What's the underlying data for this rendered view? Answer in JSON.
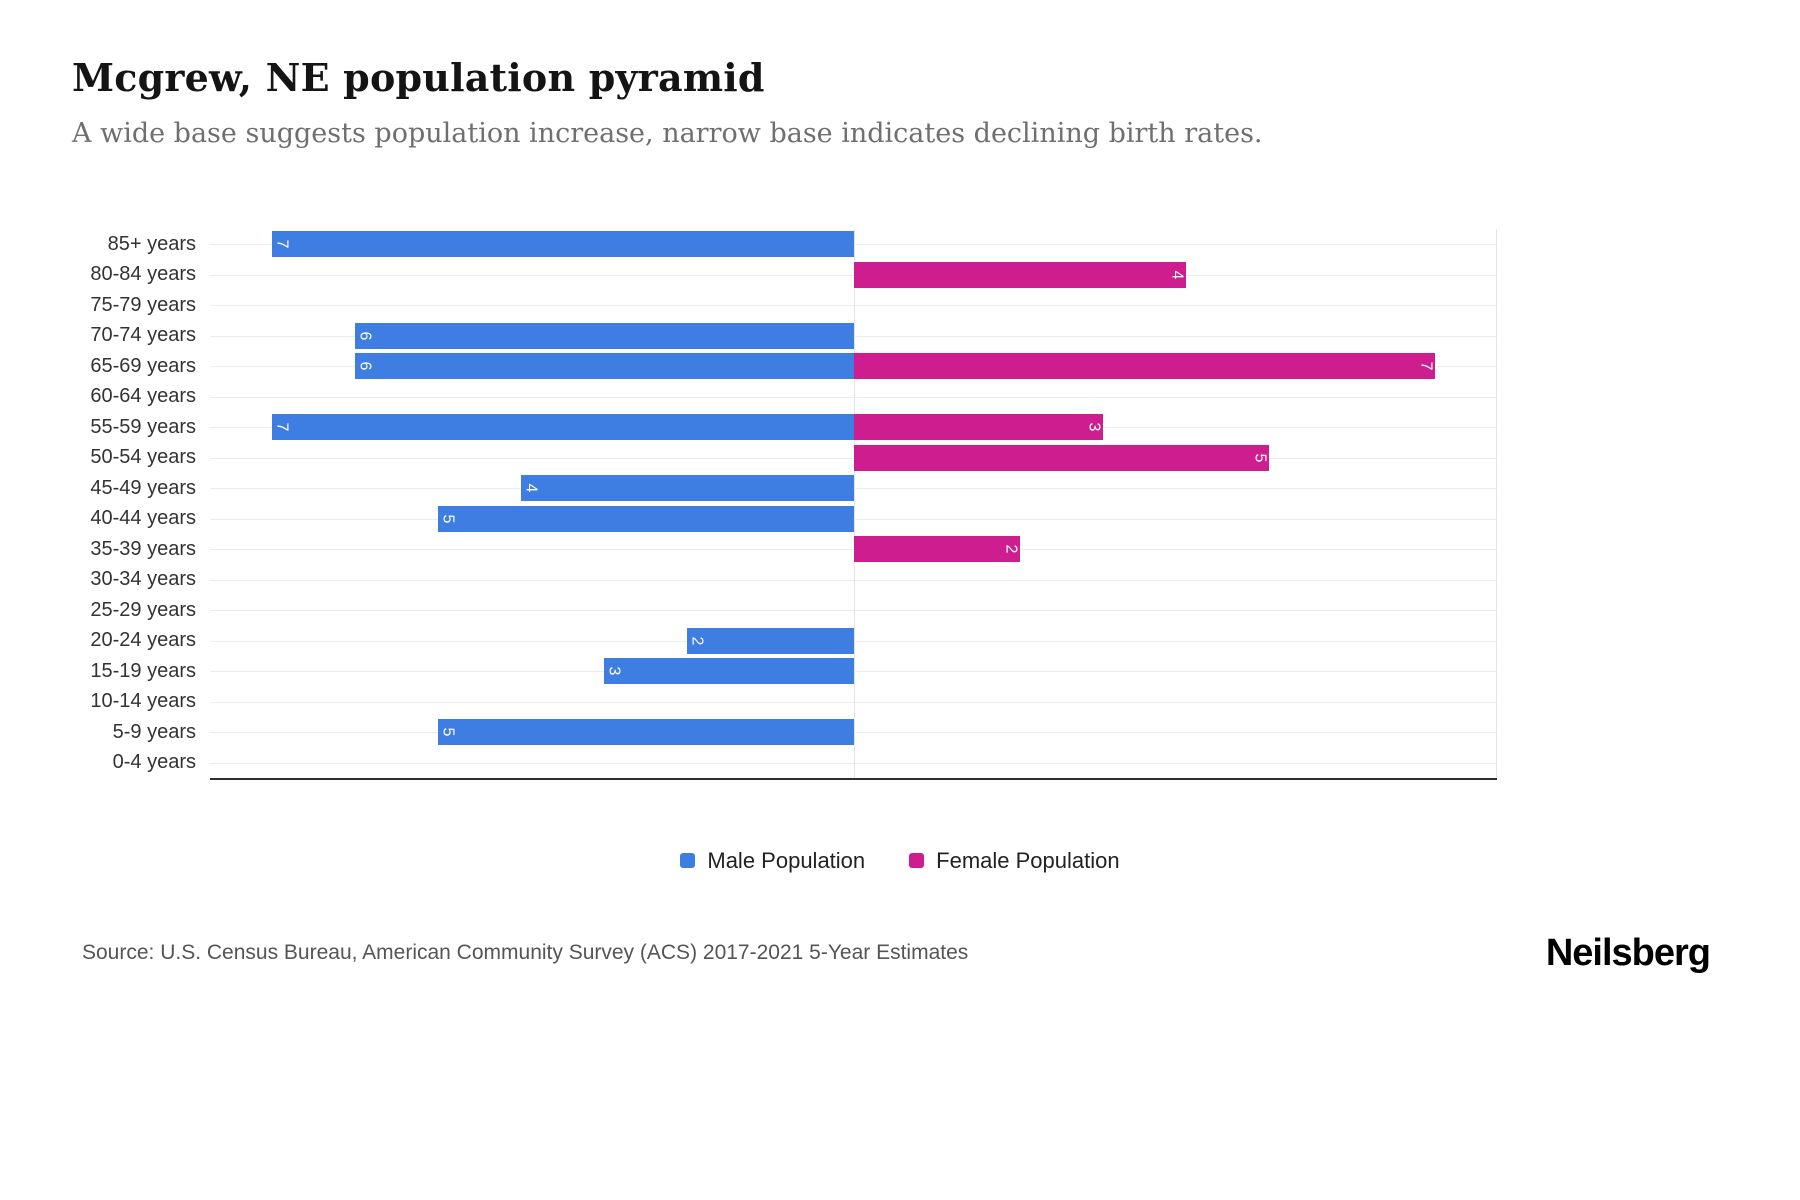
{
  "header": {
    "title": "Mcgrew, NE population pyramid",
    "subtitle": "A wide base suggests population increase, narrow base indicates declining birth rates."
  },
  "chart_data": {
    "type": "bar",
    "variant": "population-pyramid",
    "orientation": "horizontal",
    "categories": [
      "85+ years",
      "80-84 years",
      "75-79 years",
      "70-74 years",
      "65-69 years",
      "60-64 years",
      "55-59 years",
      "50-54 years",
      "45-49 years",
      "40-44 years",
      "35-39 years",
      "30-34 years",
      "25-29 years",
      "20-24 years",
      "15-19 years",
      "10-14 years",
      "5-9 years",
      "0-4 years"
    ],
    "series": [
      {
        "name": "Male Population",
        "color": "#3e7de1",
        "side": "left",
        "values": [
          7,
          0,
          0,
          6,
          6,
          0,
          7,
          0,
          4,
          5,
          0,
          0,
          0,
          2,
          3,
          0,
          5,
          0
        ]
      },
      {
        "name": "Female Population",
        "color": "#ce1d8e",
        "side": "right",
        "values": [
          0,
          4,
          0,
          0,
          7,
          0,
          3,
          5,
          0,
          0,
          2,
          0,
          0,
          0,
          0,
          0,
          0,
          0
        ]
      }
    ],
    "value_axis_max": 7.75,
    "grid": true,
    "legend_position": "bottom",
    "data_labels": "inside outer end, rotated 90deg, white"
  },
  "footer": {
    "source": "Source: U.S. Census Bureau, American Community Survey (ACS) 2017-2021 5-Year Estimates",
    "brand": "Neilsberg"
  }
}
